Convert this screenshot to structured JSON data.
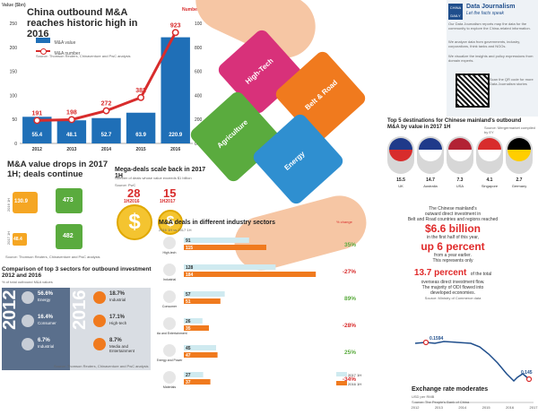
{
  "topleft": {
    "title": "China outbound M&A reaches historic high in 2016",
    "y_left_label": "Value ($bn)",
    "y_right_label": "Number",
    "legend_value": "M&A value",
    "legend_number": "M&A number",
    "source": "Source: Thomson Reuters, Chinaventure and PwC analysis"
  },
  "chart_data": [
    {
      "type": "bar",
      "categories": [
        "2012",
        "2013",
        "2014",
        "2015",
        "2016"
      ],
      "series": [
        {
          "name": "M&A value",
          "values": [
            55.4,
            48.1,
            52.7,
            63.9,
            220.9
          ]
        },
        {
          "name": "M&A number",
          "values": [
            191,
            198,
            272,
            382,
            923
          ]
        }
      ],
      "title": "China outbound M&A reaches historic high in 2016",
      "ylabel": "Value ($bn)",
      "y2label": "Number",
      "ylim": [
        0,
        250
      ],
      "y_ticks": [
        "0",
        "50",
        "100",
        "150",
        "200",
        "250"
      ],
      "y2_ticks": [
        "0",
        "200",
        "400",
        "600",
        "800",
        "1000"
      ],
      "grid": false
    },
    {
      "type": "bar",
      "title": "M&A deals in different industry sectors",
      "subtitle": "2016 1H vs 2017 1H",
      "categories": [
        "High-tech",
        "Industrial",
        "Consumer",
        "Media and Entertainment",
        "Energy and Power",
        "Materials"
      ],
      "series": [
        {
          "name": "2016 1H",
          "values": [
            115,
            184,
            51,
            35,
            47,
            37
          ]
        },
        {
          "name": "2017 1H",
          "values": [
            91,
            128,
            57,
            26,
            45,
            27
          ]
        }
      ],
      "pct_change": [
        "35%",
        "-27%",
        "89%",
        "-28%",
        "25%",
        "-34%"
      ],
      "xlabel": "",
      "ylabel": ""
    },
    {
      "type": "line",
      "title": "Exchange rate moderates",
      "subtitle": "USD per RMB",
      "x": [
        "2012",
        "2013",
        "2014",
        "2015",
        "2016",
        "2017"
      ],
      "labels": [
        "0.1594",
        "0.145"
      ],
      "source": "Source: The People's Bank of China"
    }
  ],
  "mavalue": {
    "title": "M&A value drops in 2017 1H; deals continue",
    "row1_label": "2016 1H",
    "row2_label": "2017 1H",
    "v2016": "130.9",
    "n2016": "473",
    "v2017": "48.4",
    "n2017": "482",
    "source": "Source: Thomson Reuters, Chinaventure and PwC analysis"
  },
  "megadeals": {
    "title": "Mega-deals scale back in 2017 1H",
    "subtitle": "Number of deals whose value exceeds $1 billion",
    "source": "Source: PwC",
    "a_num": "28",
    "a_label": "1H2016",
    "b_num": "15",
    "b_label": "1H2017"
  },
  "top3": {
    "title": "Comparison of top 3 sectors for outbound investment 2012 and 2016",
    "subtitle": "% of total outbound M&A values",
    "y2012": "2012",
    "y2016": "2016",
    "items2012": [
      {
        "pct": "56.6%",
        "name": "Energy"
      },
      {
        "pct": "16.4%",
        "name": "Consumer"
      },
      {
        "pct": "6.7%",
        "name": "Industrial"
      }
    ],
    "items2016": [
      {
        "pct": "18.7%",
        "name": "Industrial"
      },
      {
        "pct": "17.1%",
        "name": "High-tech"
      },
      {
        "pct": "8.7%",
        "name": "Media and Entertainment"
      }
    ],
    "source": "Source: Thomson Reuters, Chinaventure and PwC analysis"
  },
  "puzzle": {
    "p1": "High-Tech",
    "p2": "Belt & Road",
    "p3": "Agriculture",
    "p4": "Energy"
  },
  "ddj": {
    "title": "Data Journalism",
    "subtitle": "Let the facts speak",
    "body": "Our Data Journalism reports map the data for the community to explore the China-related information.",
    "body2": "We analyze data from governments, industry, corporations, think tanks and NGOs.",
    "body3": "We visualize the insights and policy expressions from domain experts.",
    "qr_text": "Scan the QR code for more Data Journalism stories"
  },
  "dest": {
    "title": "Top 5 destinations for Chinese mainland's outbound M&A by value in 2017 1H",
    "source": "Source: Mergermarket compiled by EY",
    "items": [
      {
        "val": "15.5",
        "name": "UK"
      },
      {
        "val": "14.7",
        "name": "Australia"
      },
      {
        "val": "7.3",
        "name": "USA"
      },
      {
        "val": "4.1",
        "name": "Singapore"
      },
      {
        "val": "2.7",
        "name": "Germany"
      }
    ]
  },
  "br": {
    "l1": "The Chinese mainland's",
    "l2": "outward direct investment in",
    "l3": "Belt and Road countries and regions reached",
    "big1": "$6.6 billion",
    "l4": "in the first half of this year,",
    "big2": "up 6 percent",
    "l5": "from a year earlier.",
    "l6": "This represents only",
    "big3": "13.7 percent",
    "l7": "of the total",
    "l8": "overseas direct investment flow.",
    "l9": "The majority of ODI flowed into",
    "l10": "developed economies.",
    "source": "Source: Ministry of Commerce data"
  },
  "fx": {
    "title": "Exchange rate moderates",
    "subtitle": "USD per RMB",
    "source": "Source: The People's Bank of China"
  },
  "colors": {
    "bar_blue": "#1f6fb7",
    "line_red": "#d82c2c",
    "green": "#5aab3e",
    "orange": "#f07a1e",
    "pink": "#d8317a",
    "blue_piece": "#2f8fd0"
  }
}
